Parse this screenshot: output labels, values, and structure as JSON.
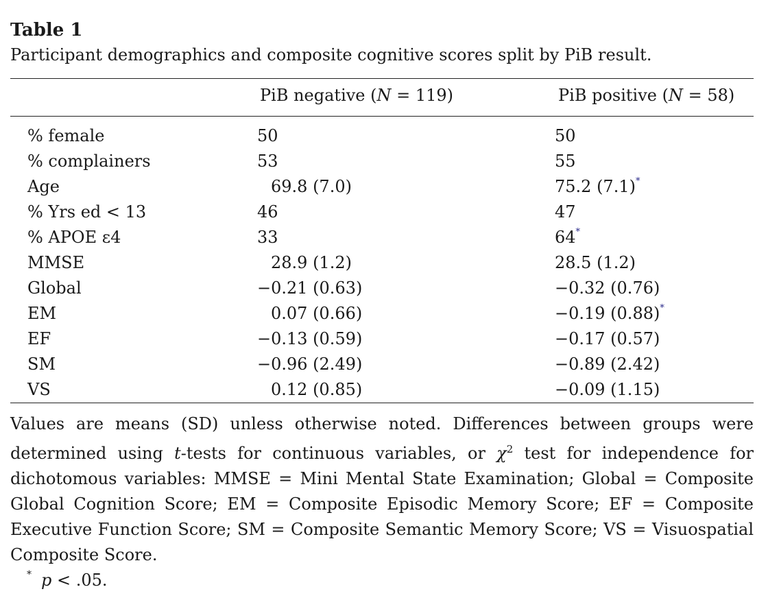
{
  "table": {
    "title": "Table 1",
    "caption": "Participant demographics and composite cognitive scores split by PiB result.",
    "columns": {
      "neg": {
        "prefix": "PiB negative (",
        "n_var": "N",
        "n_val": " = 119)"
      },
      "pos": {
        "prefix": "PiB positive (",
        "n_var": "N",
        "n_val": " = 58)"
      }
    },
    "rows": [
      {
        "label": "% female",
        "neg": "50",
        "pos": "50",
        "pos_sig": ""
      },
      {
        "label": "% complainers",
        "neg": "53",
        "pos": "55",
        "pos_sig": ""
      },
      {
        "label": "Age",
        "neg": "69.8 (7.0)",
        "pos": "75.2 (7.1)",
        "pos_sig": "*"
      },
      {
        "label": "% Yrs ed < 13",
        "neg": "46",
        "pos": "47",
        "pos_sig": ""
      },
      {
        "label": "% APOE ε4",
        "neg": "33",
        "pos": "64",
        "pos_sig": "*"
      },
      {
        "label": "MMSE",
        "neg": "28.9 (1.2)",
        "pos": "28.5 (1.2)",
        "pos_sig": ""
      },
      {
        "label": "Global",
        "neg": "−0.21 (0.63)",
        "pos": "−0.32 (0.76)",
        "pos_sig": ""
      },
      {
        "label": "EM",
        "neg": "0.07 (0.66)",
        "pos": "−0.19 (0.88)",
        "pos_sig": "*"
      },
      {
        "label": "EF",
        "neg": "−0.13 (0.59)",
        "pos": "−0.17 (0.57)",
        "pos_sig": ""
      },
      {
        "label": "SM",
        "neg": "−0.96 (2.49)",
        "pos": "−0.89 (2.42)",
        "pos_sig": ""
      },
      {
        "label": "VS",
        "neg": "0.12 (0.85)",
        "pos": "−0.09 (1.15)",
        "pos_sig": ""
      }
    ],
    "notes": {
      "part1": "Values are means (SD) unless otherwise noted. Differences between groups were determined using ",
      "t_var": "t",
      "part2": "-tests for continuous variables, or ",
      "chi": "χ",
      "chi_exp": "2",
      "part3": " test for independence for dichotomous variables: MMSE = Mini Mental State Examination; Global = Composite Global Cognition Score; EM = Composite Episodic Memory Score; EF = Composite Executive Function Score; SM = Composite Semantic Memory Score; VS = Visuospatial Composite Score."
    },
    "footnote": {
      "marker": "*",
      "p_var": "p",
      "text": " < .05."
    }
  }
}
